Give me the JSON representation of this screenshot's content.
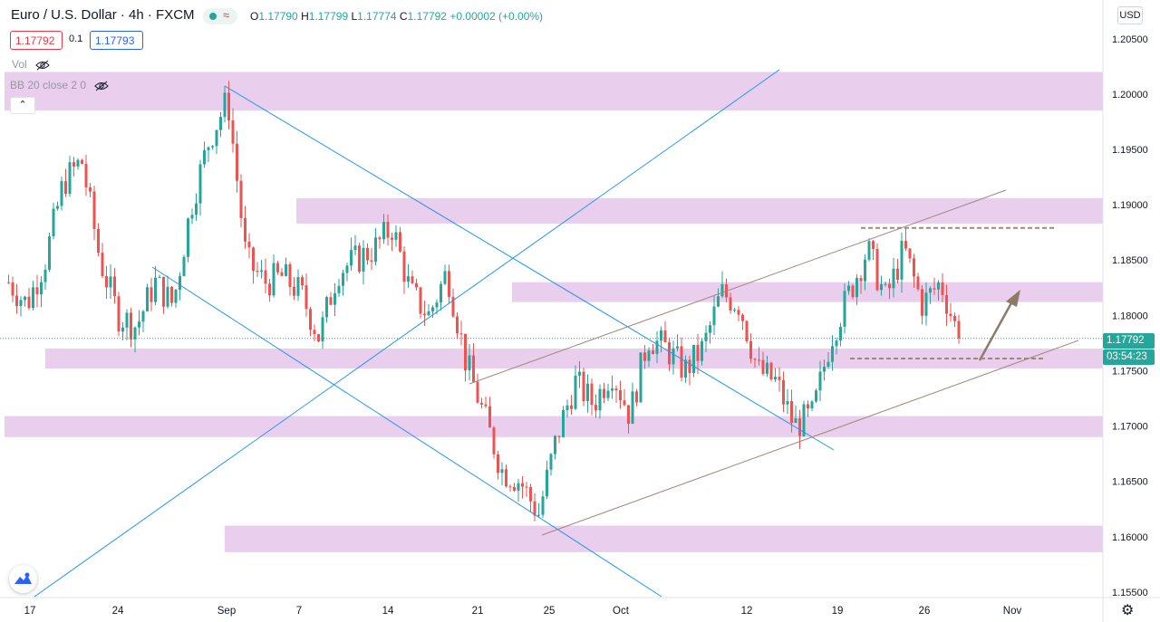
{
  "header": {
    "symbol_title": "Euro / U.S. Dollar · 4h · FXCM",
    "ohlc": {
      "o_label": "O",
      "o": "1.17790",
      "h_label": "H",
      "h": "1.17799",
      "l_label": "L",
      "l": "1.17774",
      "c_label": "C",
      "c": "1.17792",
      "change": "+0.00002 (+0.00%)"
    },
    "wave_glyph": "≈",
    "sell_price": "1.17792",
    "spread": "0.1",
    "buy_price": "1.17793"
  },
  "indicators": {
    "vol_label": "Vol",
    "bb_label": "BB 20 close 2 0",
    "collapse_glyph": "⌃"
  },
  "currency_button": "USD",
  "last_price_label": "1.17792",
  "countdown_label": "03:54:23",
  "settings_glyph": "⚙",
  "colors": {
    "up": "#26a69a",
    "down": "#ef5350",
    "zone": "#e1bee7",
    "trendline": "#2196f3",
    "channel": "#a1887f",
    "arrow": "#8d7b68"
  },
  "chart_data": {
    "type": "candlestick",
    "title": "Euro / U.S. Dollar",
    "ylim": [
      1.1545,
      1.2085
    ],
    "y_ticks": [
      "1.20500",
      "1.20000",
      "1.19500",
      "1.19000",
      "1.18500",
      "1.18000",
      "1.17500",
      "1.17000",
      "1.16500",
      "1.16000",
      "1.15500"
    ],
    "x_ticks": [
      "17",
      "24",
      "Sep",
      "7",
      "14",
      "21",
      "25",
      "Oct",
      "12",
      "19",
      "26",
      "Nov"
    ],
    "last_price": 1.17792,
    "price_path": [
      {
        "date": "Aug 14",
        "price": 1.183
      },
      {
        "date": "Aug 15",
        "price": 1.181
      },
      {
        "date": "Aug 17",
        "price": 1.185
      },
      {
        "date": "Aug 18",
        "price": 1.192
      },
      {
        "date": "Aug 19",
        "price": 1.194
      },
      {
        "date": "Aug 20",
        "price": 1.185
      },
      {
        "date": "Aug 21",
        "price": 1.18
      },
      {
        "date": "Aug 24",
        "price": 1.179
      },
      {
        "date": "Aug 26",
        "price": 1.183
      },
      {
        "date": "Aug 27",
        "price": 1.181
      },
      {
        "date": "Aug 28",
        "price": 1.19
      },
      {
        "date": "Aug 31",
        "price": 1.196
      },
      {
        "date": "Sep 1",
        "price": 1.1995
      },
      {
        "date": "Sep 2",
        "price": 1.185
      },
      {
        "date": "Sep 3",
        "price": 1.183
      },
      {
        "date": "Sep 4",
        "price": 1.1835
      },
      {
        "date": "Sep 7",
        "price": 1.182
      },
      {
        "date": "Sep 9",
        "price": 1.178
      },
      {
        "date": "Sep 10",
        "price": 1.184
      },
      {
        "date": "Sep 11",
        "price": 1.185
      },
      {
        "date": "Sep 14",
        "price": 1.186
      },
      {
        "date": "Sep 15",
        "price": 1.188
      },
      {
        "date": "Sep 16",
        "price": 1.182
      },
      {
        "date": "Sep 17",
        "price": 1.18
      },
      {
        "date": "Sep 18",
        "price": 1.184
      },
      {
        "date": "Sep 21",
        "price": 1.176
      },
      {
        "date": "Sep 22",
        "price": 1.171
      },
      {
        "date": "Sep 23",
        "price": 1.166
      },
      {
        "date": "Sep 24",
        "price": 1.165
      },
      {
        "date": "Sep 25",
        "price": 1.162
      },
      {
        "date": "Sep 28",
        "price": 1.169
      },
      {
        "date": "Sep 29",
        "price": 1.174
      },
      {
        "date": "Sep 30",
        "price": 1.172
      },
      {
        "date": "Oct 1",
        "price": 1.175
      },
      {
        "date": "Oct 2",
        "price": 1.171
      },
      {
        "date": "Oct 5",
        "price": 1.178
      },
      {
        "date": "Oct 6",
        "price": 1.177
      },
      {
        "date": "Oct 7",
        "price": 1.175
      },
      {
        "date": "Oct 8",
        "price": 1.177
      },
      {
        "date": "Oct 9",
        "price": 1.182
      },
      {
        "date": "Oct 12",
        "price": 1.181
      },
      {
        "date": "Oct 13",
        "price": 1.175
      },
      {
        "date": "Oct 14",
        "price": 1.174
      },
      {
        "date": "Oct 15",
        "price": 1.17
      },
      {
        "date": "Oct 16",
        "price": 1.171
      },
      {
        "date": "Oct 19",
        "price": 1.178
      },
      {
        "date": "Oct 20",
        "price": 1.182
      },
      {
        "date": "Oct 21",
        "price": 1.186
      },
      {
        "date": "Oct 22",
        "price": 1.1815
      },
      {
        "date": "Oct 23",
        "price": 1.186
      },
      {
        "date": "Oct 26",
        "price": 1.181
      },
      {
        "date": "Oct 27",
        "price": 1.183
      },
      {
        "date": "Oct 28",
        "price": 1.178
      }
    ],
    "support_resistance_zones": [
      {
        "from": 1.1985,
        "to": 1.202
      },
      {
        "from": 1.1883,
        "to": 1.1906
      },
      {
        "from": 1.1812,
        "to": 1.183
      },
      {
        "from": 1.1752,
        "to": 1.177
      },
      {
        "from": 1.169,
        "to": 1.1709
      },
      {
        "from": 1.1586,
        "to": 1.161
      }
    ],
    "horizontal_levels": [
      1.1879,
      1.1761
    ]
  }
}
